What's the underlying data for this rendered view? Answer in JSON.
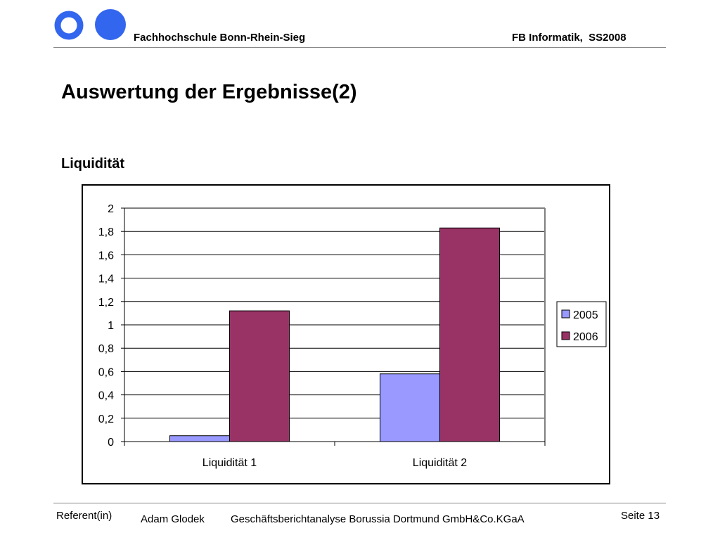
{
  "header": {
    "school": "Fachhochschule Bonn-Rhein-Sieg",
    "department": "FB Informatik,  SS2008"
  },
  "slide": {
    "title": "Auswertung der Ergebnisse(2)",
    "subtitle": "Liquidität"
  },
  "colors": {
    "logo_blue": "#3366ee",
    "series_2005": "#9999ff",
    "series_2006": "#993366",
    "plot_border": "#808080"
  },
  "chart_data": {
    "type": "bar",
    "categories": [
      "Liquidität 1",
      "Liquidität 2"
    ],
    "series": [
      {
        "name": "2005",
        "values": [
          0.05,
          0.58
        ]
      },
      {
        "name": "2006",
        "values": [
          1.12,
          1.83
        ]
      }
    ],
    "ylim": [
      0,
      2
    ],
    "yticks": [
      "0",
      "0,2",
      "0,4",
      "0,6",
      "0,8",
      "1",
      "1,2",
      "1,4",
      "1,6",
      "1,8",
      "2"
    ],
    "grid": true,
    "legend": "right"
  },
  "footer": {
    "referent_label": "Referent(in)",
    "author": "Adam Glodek",
    "topic": "Geschäftsberichtanalyse Borussia Dortmund GmbH&Co.KGaA",
    "page": "Seite 13"
  }
}
